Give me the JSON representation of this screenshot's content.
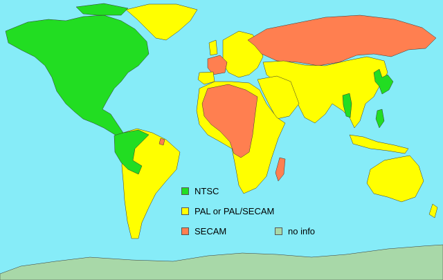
{
  "map": {
    "colors": {
      "ocean": "#86ecf8",
      "ntsc": "#22dd22",
      "pal": "#ffff00",
      "secam": "#ff7f50",
      "no_info": "#a8d8a8"
    }
  },
  "legend": {
    "items": [
      {
        "key": "ntsc",
        "label": "NTSC",
        "color": "#22dd22"
      },
      {
        "key": "pal",
        "label": "PAL or PAL/SECAM",
        "color": "#ffff00"
      },
      {
        "key": "secam",
        "label": "SECAM",
        "color": "#ff7f50"
      },
      {
        "key": "no_info",
        "label": "no info",
        "color": "#a8d8a8"
      }
    ]
  }
}
